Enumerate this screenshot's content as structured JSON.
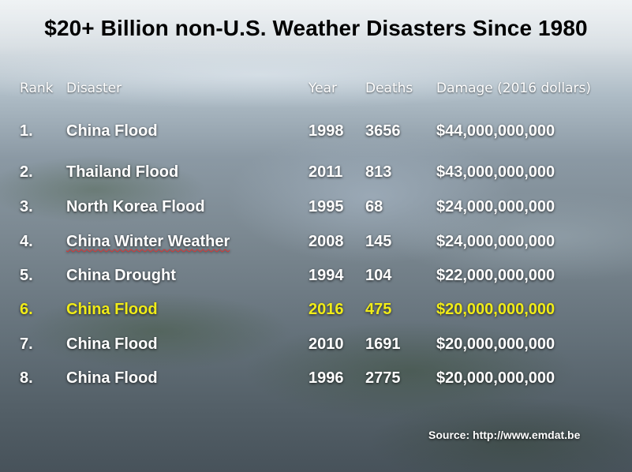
{
  "title": "$20+ Billion non-U.S. Weather Disasters Since 1980",
  "columns": {
    "rank": "Rank",
    "disaster": "Disaster",
    "year": "Year",
    "deaths": "Deaths",
    "damage": "Damage (2016 dollars)"
  },
  "rows": [
    {
      "rank": "1.",
      "disaster": "China Flood",
      "year": "1998",
      "deaths": "3656",
      "damage": "$44,000,000,000",
      "highlighted": false
    },
    {
      "rank": "2.",
      "disaster": "Thailand Flood",
      "year": "2011",
      "deaths": "813",
      "damage": "$43,000,000,000",
      "highlighted": false
    },
    {
      "rank": "3.",
      "disaster": "North Korea Flood",
      "year": "1995",
      "deaths": "68",
      "damage": "$24,000,000,000",
      "highlighted": false
    },
    {
      "rank": "4.",
      "disaster": "China Winter Weather",
      "year": "2008",
      "deaths": "145",
      "damage": "$24,000,000,000",
      "highlighted": false
    },
    {
      "rank": "5.",
      "disaster": "China Drought",
      "year": "1994",
      "deaths": "104",
      "damage": "$22,000,000,000",
      "highlighted": false
    },
    {
      "rank": "6.",
      "disaster": "China Flood",
      "year": "2016",
      "deaths": "475",
      "damage": "$20,000,000,000",
      "highlighted": true
    },
    {
      "rank": "7.",
      "disaster": "China Flood",
      "year": "2010",
      "deaths": "1691",
      "damage": "$20,000,000,000",
      "highlighted": false
    },
    {
      "rank": "8.",
      "disaster": "China Flood",
      "year": "1996",
      "deaths": "2775",
      "damage": "$20,000,000,000",
      "highlighted": false
    }
  ],
  "source": "Source: http://www.emdat.be",
  "colors": {
    "highlight": "#f1ec17",
    "text": "#ffffff",
    "title": "#000000"
  }
}
